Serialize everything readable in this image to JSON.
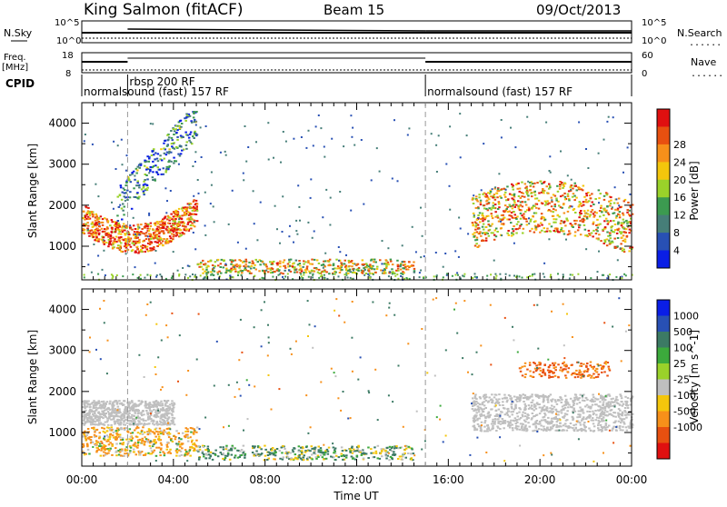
{
  "header": {
    "station": "King Salmon (fitACF)",
    "beam": "Beam 15",
    "date": "09/Oct/2013"
  },
  "strip_labels": {
    "nsky": "N.Sky",
    "nsearch": "N.Search",
    "freq": "Freq.",
    "freq_unit": "[MHz]",
    "nave": "Nave",
    "cpid": "CPID",
    "noise_ticks_top": "10^5",
    "noise_ticks_bottom": "10^0",
    "freq_tick_top": "18",
    "freq_tick_bottom": "8",
    "nave_tick_top": "60",
    "nave_tick_bottom": "0",
    "legend_dotted": "......"
  },
  "cpid_segments": [
    {
      "label": "normalsound (fast) 157 RF",
      "start_hr": 0,
      "end_hr": 2.0
    },
    {
      "label": "rbsp 200 RF",
      "start_hr": 2.0,
      "end_hr": 15.0
    },
    {
      "label": "normalsound (fast) 157 RF",
      "start_hr": 15.0,
      "end_hr": 24.0
    }
  ],
  "axes": {
    "xlabel": "Time UT",
    "x_ticks": [
      "00:00",
      "04:00",
      "08:00",
      "12:00",
      "16:00",
      "20:00",
      "00:00"
    ],
    "x_range_hr": [
      0,
      24
    ],
    "ylabel": "Slant Range [km]",
    "y_ticks": [
      1000,
      2000,
      3000,
      4000
    ],
    "y_range_km": [
      180,
      4500
    ]
  },
  "colors": {
    "power": [
      "#0a1ee6",
      "#2850b4",
      "#467e78",
      "#3c9a50",
      "#9ad22a",
      "#f4c60c",
      "#f7901a",
      "#e85010",
      "#e01010"
    ],
    "velocity": [
      "#0a1ee6",
      "#2850b4",
      "#3c7a64",
      "#3caa3c",
      "#9ad22a",
      "#bfbfbf",
      "#f4c60c",
      "#f7901a",
      "#e85010",
      "#e01010"
    ]
  },
  "chart_data": [
    {
      "type": "heatmap",
      "title": "",
      "xlabel": "Time UT",
      "ylabel": "Slant Range [km]",
      "colorbar_label": "Power [dB]",
      "colorbar_ticks": [
        "4",
        "8",
        "12",
        "16",
        "20",
        "24",
        "28"
      ],
      "colorbar_range": [
        0,
        30
      ],
      "features": [
        {
          "name": "near-range band",
          "start_hr": 0,
          "end_hr": 5.0,
          "range_km": [
            1000,
            2000
          ],
          "power_db": 24
        },
        {
          "name": "upward streaks",
          "start_hr": 1.5,
          "end_hr": 5.0,
          "range_km": [
            2000,
            4200
          ],
          "power_db": 8
        },
        {
          "name": "low-range echoes",
          "start_hr": 5.0,
          "end_hr": 14.5,
          "range_km": [
            300,
            700
          ],
          "power_db": 18
        },
        {
          "name": "afternoon band",
          "start_hr": 17.0,
          "end_hr": 24.0,
          "range_km": [
            1100,
            2700
          ],
          "power_db": 20
        }
      ]
    },
    {
      "type": "heatmap",
      "title": "",
      "xlabel": "Time UT",
      "ylabel": "Slant Range [km]",
      "colorbar_label": "Velocity [m s^-1]",
      "colorbar_ticks": [
        "1000",
        "500",
        "100",
        "25",
        "-25",
        "-100",
        "-500",
        "-1000"
      ],
      "colorbar_range": [
        -1000,
        1000
      ],
      "features": [
        {
          "name": "ground scatter band",
          "start_hr": 0,
          "end_hr": 4.0,
          "range_km": [
            1200,
            1800
          ],
          "velocity_ms": 0
        },
        {
          "name": "near-range receding",
          "start_hr": 0,
          "end_hr": 5.0,
          "range_km": [
            500,
            1100
          ],
          "velocity_ms": -100
        },
        {
          "name": "low-range mixed",
          "start_hr": 5.0,
          "end_hr": 14.5,
          "range_km": [
            300,
            700
          ],
          "velocity_ms": 100
        },
        {
          "name": "afternoon ground scatter",
          "start_hr": 17.0,
          "end_hr": 24.0,
          "range_km": [
            1100,
            2000
          ],
          "velocity_ms": 0
        },
        {
          "name": "afternoon receding",
          "start_hr": 19.0,
          "end_hr": 23.0,
          "range_km": [
            2300,
            2800
          ],
          "velocity_ms": -500
        }
      ]
    }
  ]
}
